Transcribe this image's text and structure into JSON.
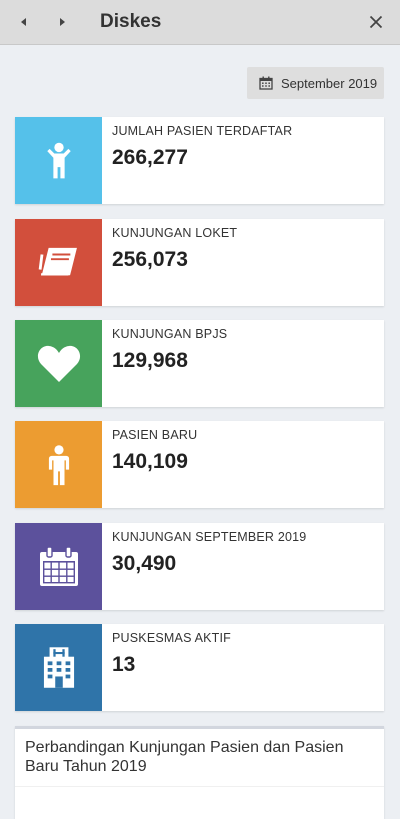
{
  "header": {
    "title": "Diskes"
  },
  "filter": {
    "date_label": "September 2019"
  },
  "stats": [
    {
      "label": "JUMLAH PASIEN TERDAFTAR",
      "value": "266,277",
      "color": "#55c1ea",
      "icon": "child-icon"
    },
    {
      "label": "KUNJUNGAN LOKET",
      "value": "256,073",
      "color": "#d24f3c",
      "icon": "book-icon"
    },
    {
      "label": "KUNJUNGAN BPJS",
      "value": "129,968",
      "color": "#47a35c",
      "icon": "heart-icon"
    },
    {
      "label": "PASIEN BARU",
      "value": "140,109",
      "color": "#ec9c31",
      "icon": "person-icon"
    },
    {
      "label": "KUNJUNGAN SEPTEMBER 2019",
      "value": "30,490",
      "color": "#5c519c",
      "icon": "calendar-icon"
    },
    {
      "label": "PUSKESMAS AKTIF",
      "value": "13",
      "color": "#2f74a9",
      "icon": "hospital-icon"
    }
  ],
  "chart_section": {
    "title": "Perbandingan Kunjungan Pasien dan Pasien Baru Tahun 2019"
  }
}
